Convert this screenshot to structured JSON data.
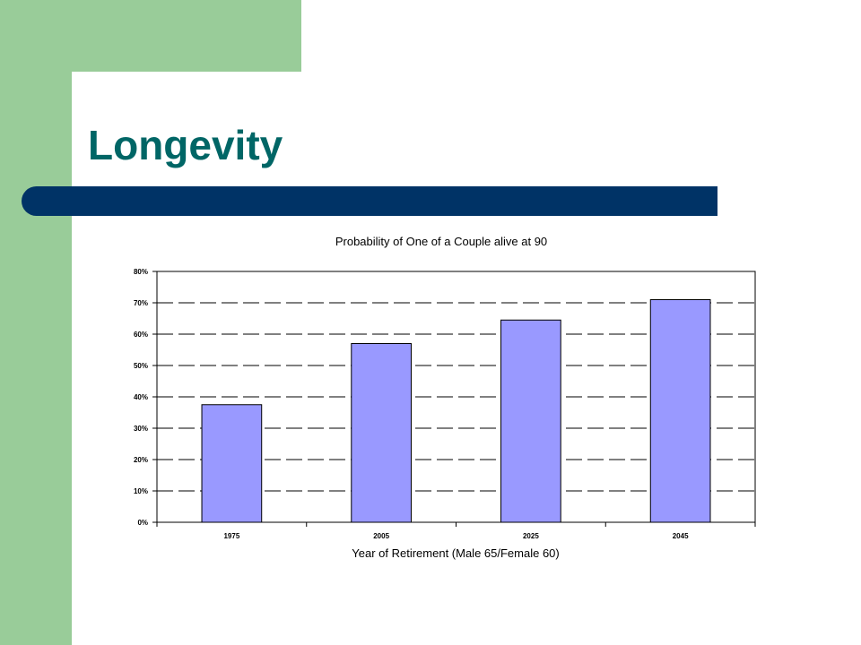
{
  "slide": {
    "title": "Longevity"
  },
  "colors": {
    "sidebar_green": "#99cc99",
    "title_teal": "#006666",
    "bar_navy": "#003366",
    "bar_fill": "#9999ff"
  },
  "chart_data": {
    "type": "bar",
    "title": "Probability of One of a Couple alive at 90",
    "xlabel": "Year of Retirement (Male 65/Female 60)",
    "ylabel": "",
    "categories": [
      "1975",
      "2005",
      "2025",
      "2045"
    ],
    "values": [
      0.375,
      0.57,
      0.645,
      0.71
    ],
    "ylim": [
      0,
      0.8
    ],
    "yticks": [
      0,
      0.1,
      0.2,
      0.3,
      0.4,
      0.5,
      0.6,
      0.7,
      0.8
    ],
    "ytick_labels": [
      "0%",
      "10%",
      "20%",
      "30%",
      "40%",
      "50%",
      "60%",
      "70%",
      "80%"
    ],
    "grid": "horizontal dashed",
    "legend": "none"
  }
}
